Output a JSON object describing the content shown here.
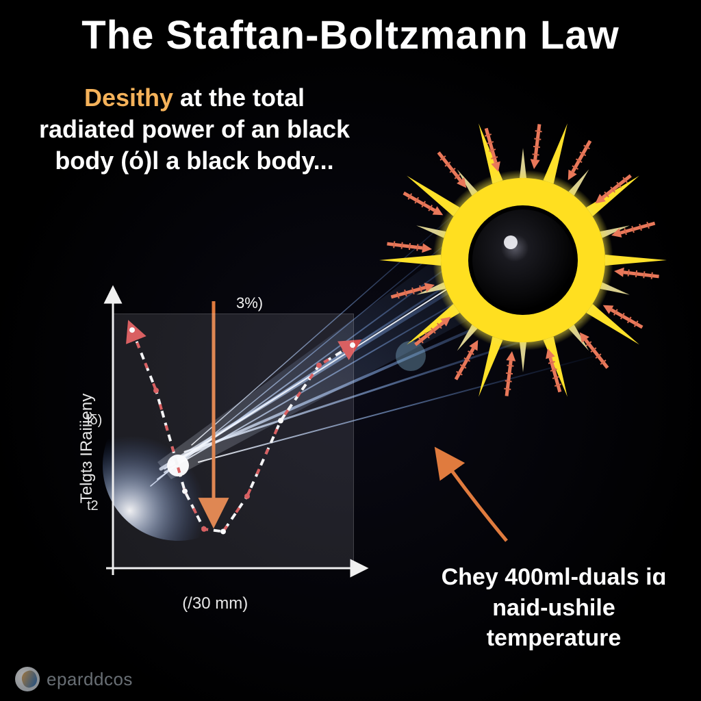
{
  "title": "The Staftan-Boltzmann Law",
  "subtitle": {
    "accent_word": "Desithy",
    "rest": " at the total radiated power of an black body (ό)l a black body..."
  },
  "caption": "Chey 400ml-duals iɑ naid-ushile temperature",
  "watermark": "eparddcos",
  "sun": {
    "outer_ray_color": "#fff3a8",
    "inner_ray_color": "#ffe12a",
    "halo_outer": "#f7e544",
    "halo_inner": "#ffd200",
    "core_color": "#0a0a0a",
    "core_highlight": "#e8e8f0",
    "arrow_color": "#e9785a",
    "arrow_tick_color": "#d86b4e",
    "num_rays": 20,
    "num_arrows": 16,
    "ray_inner_r": 120,
    "ray_outer_r": 210,
    "arrow_outer_r": 200,
    "arrow_inner_r": 148,
    "halo_r": 130,
    "core_r": 74
  },
  "beam": {
    "ray_color_a": "#9fc6ff",
    "ray_color_b": "#3a64ba",
    "glow_color": "#dce9ff",
    "node_color": "#6dd3e6"
  },
  "annotation_arrow": {
    "stroke": "#e07b3e",
    "stroke_width": 5
  },
  "chart": {
    "type": "line",
    "background_color": "rgba(220,220,235,0.12)",
    "axis_color": "#f0f0f0",
    "axis_width": 3,
    "curve_dash": "10 8",
    "curve_segment_colors": [
      "#f7f7f7",
      "#d94f4f"
    ],
    "curve_width": 4,
    "marker_color": "#d94f4f",
    "ylabel": "Telgtɜ IRaiiieny",
    "xlabel": "(/30 mm)",
    "yticks": [
      "t2",
      "lδ)"
    ],
    "ytick_positions_pct": [
      24,
      58
    ],
    "peak_annotation": "3%)",
    "xlim": [
      0,
      100
    ],
    "ylim": [
      0,
      100
    ],
    "curve_points": [
      [
        8,
        94
      ],
      [
        18,
        70
      ],
      [
        30,
        30
      ],
      [
        38,
        15
      ],
      [
        46,
        14
      ],
      [
        56,
        28
      ],
      [
        70,
        58
      ],
      [
        86,
        80
      ],
      [
        100,
        88
      ]
    ],
    "arrow_to_peak": {
      "from": [
        48,
        -6
      ],
      "to": [
        40,
        12
      ]
    }
  }
}
